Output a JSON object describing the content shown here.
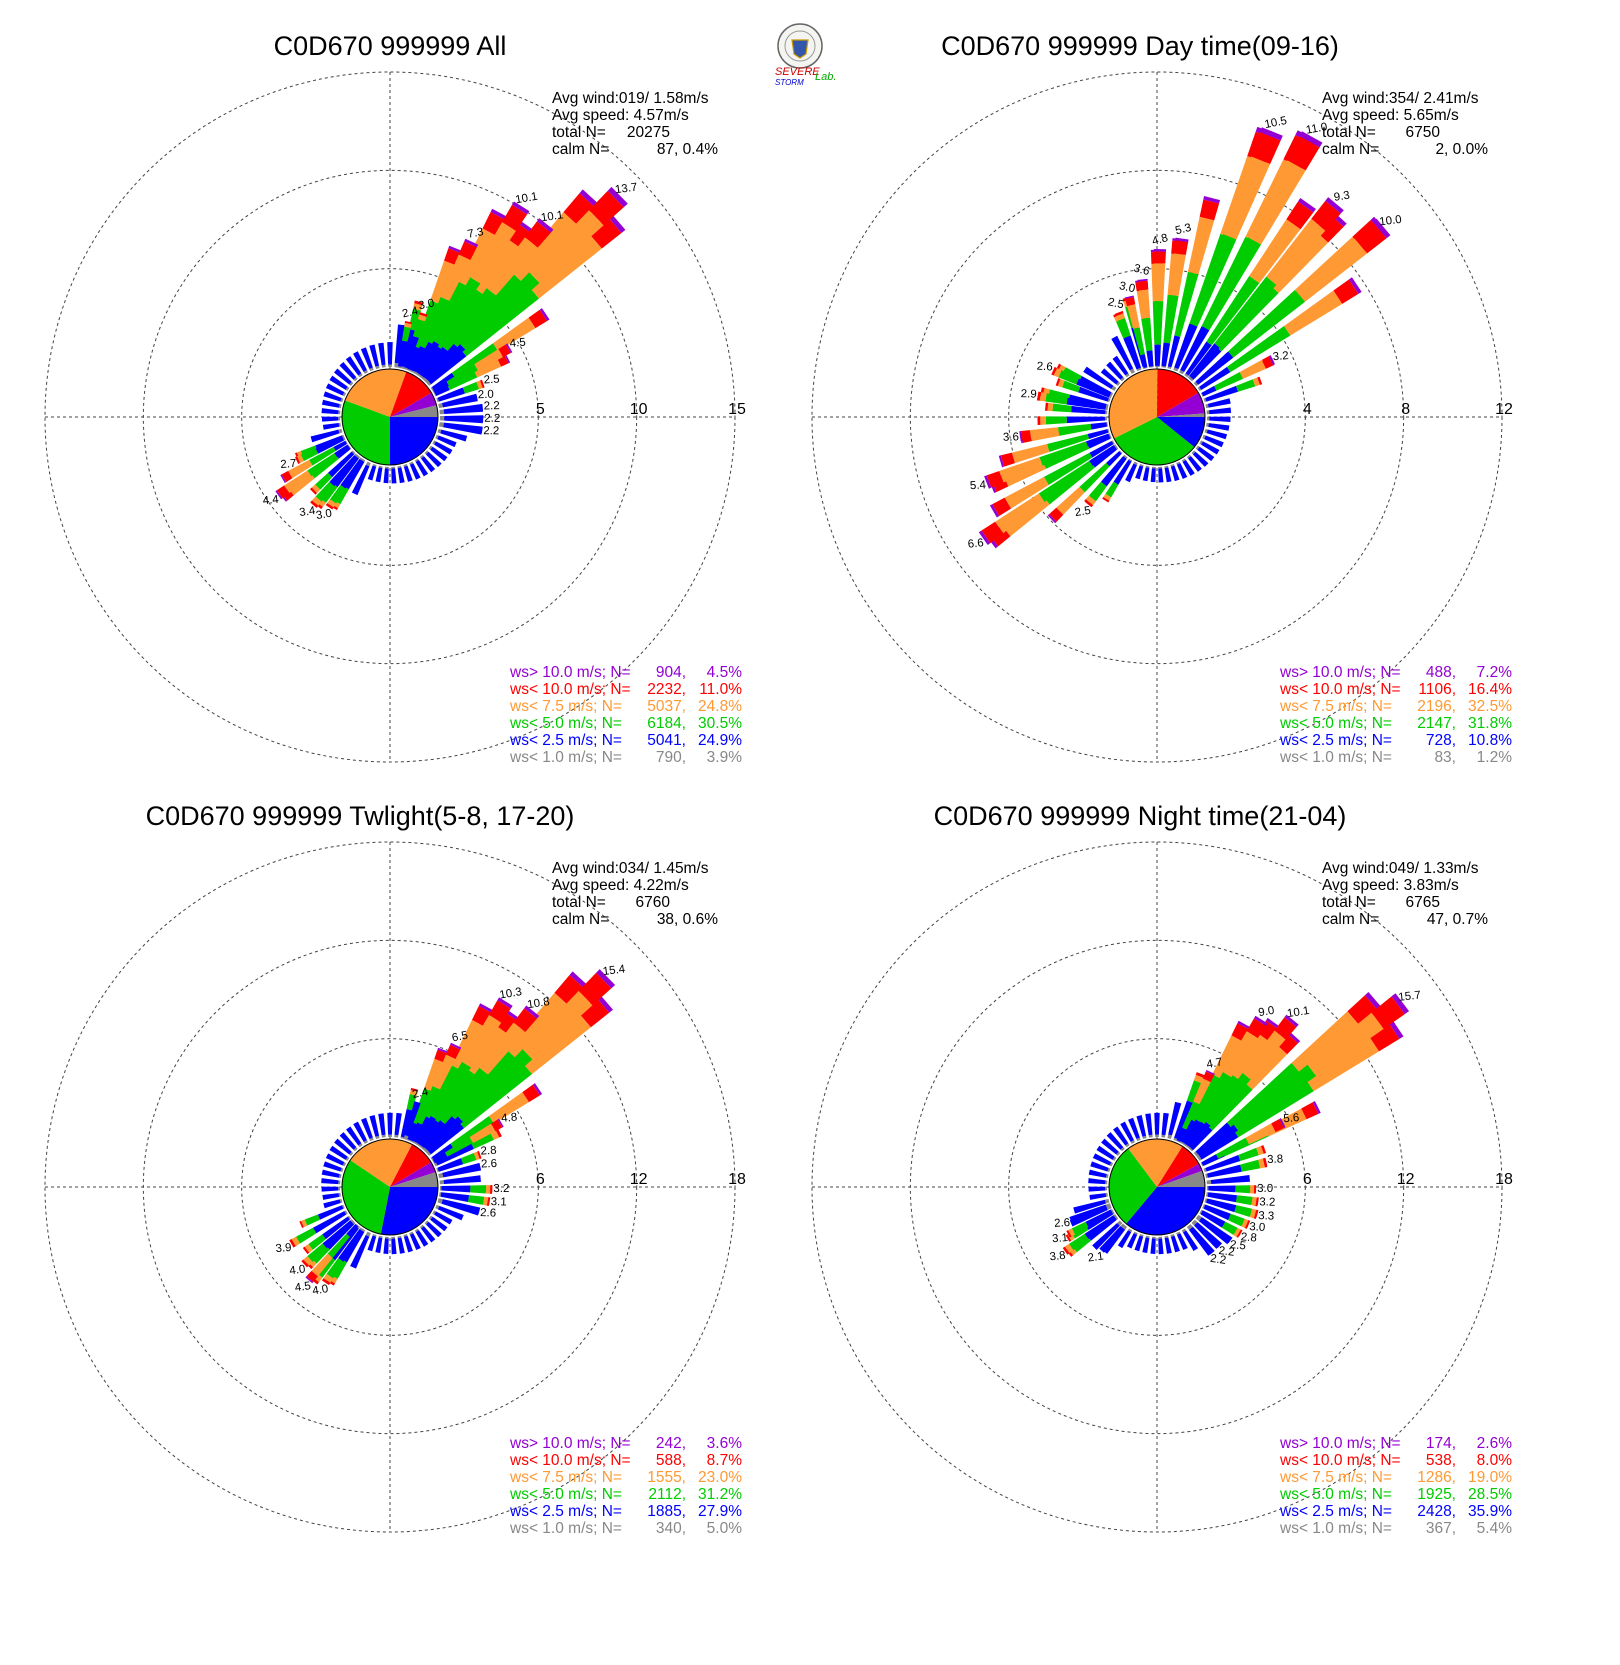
{
  "colors": {
    "purple": "#9400d3",
    "red": "#ff0000",
    "orange": "#ff9933",
    "green": "#00cc00",
    "blue": "#0000ff",
    "gray": "#888888"
  },
  "logo": {
    "text_a": "SEVERE",
    "text_b": "STORM",
    "text_c": "Lab."
  },
  "chart_data": [
    {
      "type": "windrose",
      "title": "C0D670 999999 All",
      "avg_wind": "Avg wind:019/ 1.58m/s",
      "avg_speed": "Avg speed: 4.57m/s",
      "total_label": "total N=",
      "total_value": "20275",
      "calm_label": "calm N=",
      "calm_value": "87,   0.4%",
      "rmax": 15,
      "ring_labels": [
        "5",
        "10",
        "15"
      ],
      "pie": [
        24.9,
        30.5,
        24.8,
        11.0,
        4.5,
        3.9
      ],
      "peaks": [
        {
          "dir": 11,
          "v": 2.4
        },
        {
          "dir": 18,
          "v": 3.0
        },
        {
          "dir": 25,
          "v": 7.3
        },
        {
          "dir": 32,
          "v": 10.1
        },
        {
          "dir": 39,
          "v": 10.1
        },
        {
          "dir": 46,
          "v": 13.7
        },
        {
          "dir": 60,
          "v": 4.5
        },
        {
          "dir": 70,
          "v": 2.5
        },
        {
          "dir": 77,
          "v": 2.0
        },
        {
          "dir": 84,
          "v": 2.2
        },
        {
          "dir": 91,
          "v": 2.2
        },
        {
          "dir": 98,
          "v": 2.2
        },
        {
          "dir": 214,
          "v": 3.0
        },
        {
          "dir": 221,
          "v": 3.4
        },
        {
          "dir": 235,
          "v": 4.4
        },
        {
          "dir": 245,
          "v": 2.7
        }
      ],
      "legend": [
        {
          "label": "ws> 10.0 m/s; N=",
          "n": "904",
          "pct": "4.5%",
          "color": "purple"
        },
        {
          "label": "ws< 10.0 m/s; N=",
          "n": "2232",
          "pct": "11.0%",
          "color": "red"
        },
        {
          "label": "ws<  7.5 m/s; N=",
          "n": "5037",
          "pct": "24.8%",
          "color": "orange"
        },
        {
          "label": "ws<  5.0 m/s; N=",
          "n": "6184",
          "pct": "30.5%",
          "color": "green"
        },
        {
          "label": "ws<  2.5 m/s; N=",
          "n": "5041",
          "pct": "24.9%",
          "color": "blue"
        },
        {
          "label": "ws<  1.0 m/s; N=",
          "n": "790",
          "pct": "3.9%",
          "color": "gray"
        }
      ]
    },
    {
      "type": "windrose",
      "title": "C0D670 999999 Day time(09-16)",
      "avg_wind": "Avg wind:354/ 2.41m/s",
      "avg_speed": "Avg speed: 5.65m/s",
      "total_label": "total N=",
      "total_value": "6750",
      "calm_label": "calm N=",
      "calm_value": "2,   0.0%",
      "rmax": 12,
      "ring_labels": [
        "4",
        "8",
        "12"
      ],
      "pie": [
        10.8,
        31.8,
        32.5,
        16.4,
        7.2,
        1.2
      ],
      "peaks": [
        {
          "dir": 340,
          "v": 2.5
        },
        {
          "dir": 347,
          "v": 3.0
        },
        {
          "dir": 354,
          "v": 3.6
        },
        {
          "dir": 1,
          "v": 4.8
        },
        {
          "dir": 8,
          "v": 5.3
        },
        {
          "dir": 22,
          "v": 10.5
        },
        {
          "dir": 29,
          "v": 11.0
        },
        {
          "dir": 40,
          "v": 9.3
        },
        {
          "dir": 50,
          "v": 10.0
        },
        {
          "dir": 64,
          "v": 3.2
        },
        {
          "dir": 294,
          "v": 2.6
        },
        {
          "dir": 280,
          "v": 2.9
        },
        {
          "dir": 262,
          "v": 3.6
        },
        {
          "dir": 249,
          "v": 5.4
        },
        {
          "dir": 235,
          "v": 6.6
        },
        {
          "dir": 218,
          "v": 2.5
        }
      ],
      "legend": [
        {
          "label": "ws> 10.0 m/s; N=",
          "n": "488",
          "pct": "7.2%",
          "color": "purple"
        },
        {
          "label": "ws< 10.0 m/s; N=",
          "n": "1106",
          "pct": "16.4%",
          "color": "red"
        },
        {
          "label": "ws<  7.5 m/s; N=",
          "n": "2196",
          "pct": "32.5%",
          "color": "orange"
        },
        {
          "label": "ws<  5.0 m/s; N=",
          "n": "2147",
          "pct": "31.8%",
          "color": "green"
        },
        {
          "label": "ws<  2.5 m/s; N=",
          "n": "728",
          "pct": "10.8%",
          "color": "blue"
        },
        {
          "label": "ws<  1.0 m/s; N=",
          "n": "83",
          "pct": "1.2%",
          "color": "gray"
        }
      ]
    },
    {
      "type": "windrose",
      "title": "C0D670 999999 Twlight(5-8, 17-20)",
      "avg_wind": "Avg wind:034/ 1.45m/s",
      "avg_speed": "Avg speed: 4.22m/s",
      "total_label": "total N=",
      "total_value": "6760",
      "calm_label": "calm N=",
      "calm_value": "38,   0.6%",
      "rmax": 18,
      "ring_labels": [
        "6",
        "12",
        "18"
      ],
      "pie": [
        27.9,
        31.2,
        23.0,
        8.7,
        3.6,
        5.0
      ],
      "peaks": [
        {
          "dir": 18,
          "v": 2.4
        },
        {
          "dir": 25,
          "v": 6.5
        },
        {
          "dir": 32,
          "v": 10.3
        },
        {
          "dir": 39,
          "v": 10.8
        },
        {
          "dir": 46,
          "v": 15.4
        },
        {
          "dir": 60,
          "v": 4.8
        },
        {
          "dir": 70,
          "v": 2.8
        },
        {
          "dir": 77,
          "v": 2.6
        },
        {
          "dir": 91,
          "v": 3.2
        },
        {
          "dir": 98,
          "v": 3.1
        },
        {
          "dir": 105,
          "v": 2.6
        },
        {
          "dir": 214,
          "v": 4.0
        },
        {
          "dir": 221,
          "v": 4.5
        },
        {
          "dir": 228,
          "v": 4.0
        },
        {
          "dir": 240,
          "v": 3.9
        }
      ],
      "legend": [
        {
          "label": "ws> 10.0 m/s; N=",
          "n": "242",
          "pct": "3.6%",
          "color": "purple"
        },
        {
          "label": "ws< 10.0 m/s; N=",
          "n": "588",
          "pct": "8.7%",
          "color": "red"
        },
        {
          "label": "ws<  7.5 m/s; N=",
          "n": "1555",
          "pct": "23.0%",
          "color": "orange"
        },
        {
          "label": "ws<  5.0 m/s; N=",
          "n": "2112",
          "pct": "31.2%",
          "color": "green"
        },
        {
          "label": "ws<  2.5 m/s; N=",
          "n": "1885",
          "pct": "27.9%",
          "color": "blue"
        },
        {
          "label": "ws<  1.0 m/s; N=",
          "n": "340",
          "pct": "5.0%",
          "color": "gray"
        }
      ]
    },
    {
      "type": "windrose",
      "title": "C0D670 999999 Night time(21-04)",
      "avg_wind": "Avg wind:049/ 1.33m/s",
      "avg_speed": "Avg speed: 3.83m/s",
      "total_label": "total N=",
      "total_value": "6765",
      "calm_label": "calm N=",
      "calm_value": "47,   0.7%",
      "rmax": 18,
      "ring_labels": [
        "6",
        "12",
        "18"
      ],
      "pie": [
        35.9,
        28.5,
        19.0,
        8.0,
        2.6,
        5.4
      ],
      "peaks": [
        {
          "dir": 25,
          "v": 4.7
        },
        {
          "dir": 32,
          "v": 9.0
        },
        {
          "dir": 39,
          "v": 10.1
        },
        {
          "dir": 53,
          "v": 15.7
        },
        {
          "dir": 63,
          "v": 5.6
        },
        {
          "dir": 77,
          "v": 3.8
        },
        {
          "dir": 91,
          "v": 3.0
        },
        {
          "dir": 98,
          "v": 3.2
        },
        {
          "dir": 105,
          "v": 3.3
        },
        {
          "dir": 112,
          "v": 3.0
        },
        {
          "dir": 119,
          "v": 2.8
        },
        {
          "dir": 126,
          "v": 2.5
        },
        {
          "dir": 133,
          "v": 2.2
        },
        {
          "dir": 140,
          "v": 2.2
        },
        {
          "dir": 221,
          "v": 2.1
        },
        {
          "dir": 235,
          "v": 3.8
        },
        {
          "dir": 242,
          "v": 3.1
        },
        {
          "dir": 249,
          "v": 2.6
        }
      ],
      "legend": [
        {
          "label": "ws> 10.0 m/s; N=",
          "n": "174",
          "pct": "2.6%",
          "color": "purple"
        },
        {
          "label": "ws< 10.0 m/s; N=",
          "n": "538",
          "pct": "8.0%",
          "color": "red"
        },
        {
          "label": "ws<  7.5 m/s; N=",
          "n": "1286",
          "pct": "19.0%",
          "color": "orange"
        },
        {
          "label": "ws<  5.0 m/s; N=",
          "n": "1925",
          "pct": "28.5%",
          "color": "green"
        },
        {
          "label": "ws<  2.5 m/s; N=",
          "n": "2428",
          "pct": "35.9%",
          "color": "blue"
        },
        {
          "label": "ws<  1.0 m/s; N=",
          "n": "367",
          "pct": "5.4%",
          "color": "gray"
        }
      ]
    }
  ]
}
